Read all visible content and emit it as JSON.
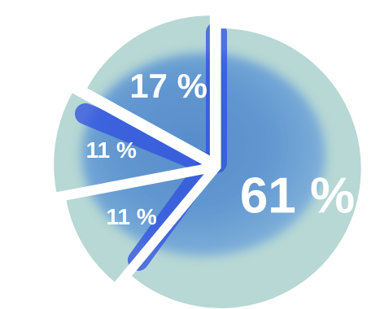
{
  "chart_data": {
    "type": "pie",
    "title": "",
    "slices": [
      {
        "label": "61 %",
        "value": 61,
        "color": "#b7d8d4"
      },
      {
        "label": "11 %",
        "value": 11,
        "color": "#b7d8d4"
      },
      {
        "label": "11 %",
        "value": 11,
        "color": "#b7d8d4"
      },
      {
        "label": "17 %",
        "value": 17,
        "color": "#b7d8d4"
      }
    ],
    "label_color": "#ffffff",
    "legend": "none",
    "background_texture": "blue-watercolor",
    "accent_color": "#2f4fe0"
  }
}
